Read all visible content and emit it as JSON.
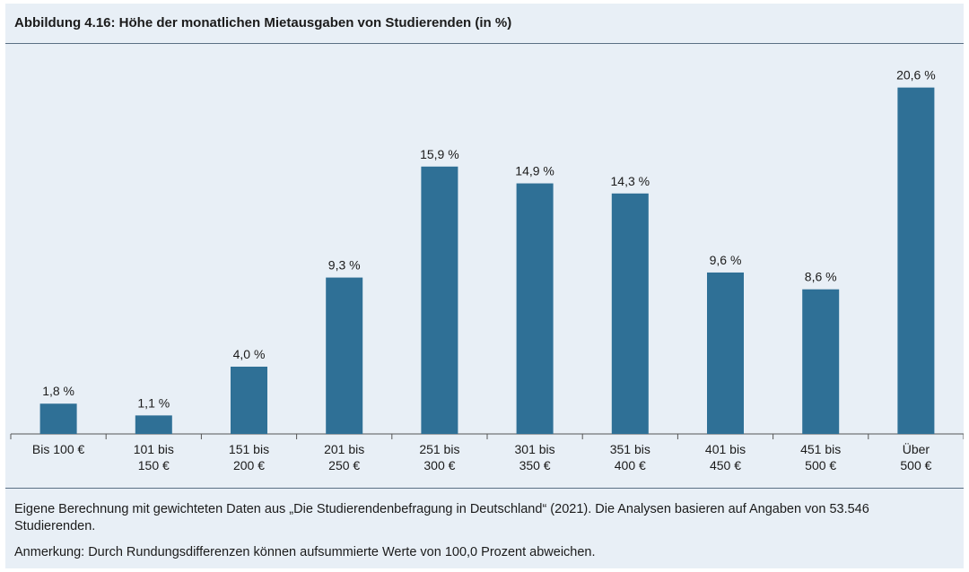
{
  "figure": {
    "title": "Abbildung 4.16: Höhe der monatlichen Mietausgaben von Studierenden (in %)",
    "source_note": "Eigene Berechnung mit gewichteten Daten aus „Die Studierendenbefragung in Deutschland“ (2021). Die Analysen basieren auf Angaben von 53.546 Studierenden.",
    "remark_note": "Anmerkung: Durch Rundungsdifferenzen können aufsummierte Werte von 100,0 Prozent abweichen."
  },
  "chart_data": {
    "type": "bar",
    "title": "Abbildung 4.16: Höhe der monatlichen Mietausgaben von Studierenden (in %)",
    "categories": [
      [
        "Bis 100 €"
      ],
      [
        "101 bis",
        "150 €"
      ],
      [
        "151 bis",
        "200 €"
      ],
      [
        "201 bis",
        "250 €"
      ],
      [
        "251 bis",
        "300 €"
      ],
      [
        "301 bis",
        "350 €"
      ],
      [
        "351 bis",
        "400 €"
      ],
      [
        "401 bis",
        "450 €"
      ],
      [
        "451 bis",
        "500 €"
      ],
      [
        "Über",
        "500 €"
      ]
    ],
    "values": [
      1.8,
      1.1,
      4.0,
      9.3,
      15.9,
      14.9,
      14.3,
      9.6,
      8.6,
      20.6
    ],
    "value_labels": [
      "1,8 %",
      "1,1 %",
      "4,0 %",
      "9,3 %",
      "15,9 %",
      "14,9 %",
      "14,3 %",
      "9,6 %",
      "8,6 %",
      "20,6 %"
    ],
    "ylim": [
      0,
      22.5
    ],
    "grid": false,
    "bar_color": "#2f7096",
    "axis_color": "#555555"
  }
}
